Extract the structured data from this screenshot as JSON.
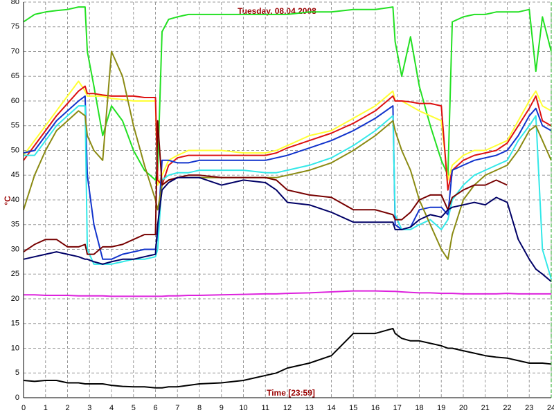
{
  "chart_data": {
    "type": "line",
    "title": "Tuesday, 08.04.2008",
    "x_label": "Time [23:59]",
    "y_label": "°C",
    "x": [
      0,
      0.5,
      1,
      1.5,
      2,
      2.5,
      2.8,
      2.9,
      3.2,
      3.6,
      4,
      4.5,
      5,
      5.5,
      6,
      6.1,
      6.3,
      6.6,
      7,
      7.5,
      8,
      9,
      10,
      11,
      11.5,
      12,
      13,
      14,
      15,
      16,
      16.8,
      16.9,
      17.2,
      17.6,
      18,
      18.5,
      19,
      19.3,
      19.5,
      20,
      20.5,
      21,
      21.5,
      22,
      22.5,
      23,
      23.3,
      23.6,
      24
    ],
    "xlim": [
      0,
      24
    ],
    "xticks": [
      0,
      1,
      2,
      3,
      4,
      5,
      6,
      7,
      8,
      9,
      10,
      11,
      12,
      13,
      14,
      15,
      16,
      17,
      18,
      19,
      20,
      21,
      22,
      23,
      24
    ],
    "ylim": [
      0,
      80
    ],
    "yticks": [
      0,
      5,
      10,
      15,
      20,
      25,
      30,
      35,
      40,
      45,
      50,
      55,
      60,
      65,
      70,
      75,
      80
    ],
    "grid": true,
    "series": [
      {
        "color": "#22e022",
        "values": [
          76,
          77.5,
          78,
          78.3,
          78.5,
          79,
          79,
          70,
          63,
          53,
          59,
          56,
          50,
          46,
          44,
          46,
          74,
          76.5,
          77,
          77.5,
          77.5,
          77.5,
          77.5,
          77.5,
          77.5,
          77.5,
          78,
          78,
          78.5,
          78.5,
          79,
          72,
          65,
          73,
          63,
          55,
          48,
          45,
          76,
          77,
          77.5,
          77.5,
          78,
          78,
          78,
          78.5,
          66,
          77,
          70
        ]
      },
      {
        "color": "#ffff33",
        "values": [
          49,
          52,
          55,
          58,
          61,
          64,
          62,
          61,
          61,
          61,
          60.5,
          60.3,
          60,
          60,
          60,
          43,
          45,
          48,
          49,
          50,
          50,
          50,
          49.5,
          49.5,
          50,
          51,
          53,
          54,
          56.5,
          59,
          62,
          60,
          60,
          59,
          58,
          57,
          56,
          44,
          47,
          49,
          50,
          50,
          51,
          52,
          56,
          60,
          62,
          59,
          58
        ]
      },
      {
        "color": "#dd1111",
        "values": [
          48,
          51,
          54,
          57,
          59.5,
          62,
          63,
          61.5,
          61.5,
          61.2,
          61,
          61,
          61,
          60.7,
          60.7,
          44,
          43,
          47,
          48.5,
          49,
          49,
          49,
          49,
          49,
          49.5,
          50.5,
          52,
          53.5,
          55.5,
          58,
          61,
          60,
          60,
          59.8,
          59.5,
          59.5,
          59,
          42,
          46,
          48,
          49,
          49.5,
          50,
          51.5,
          55,
          58.5,
          61,
          56,
          55
        ]
      },
      {
        "color": "#1133cc",
        "values": [
          49.5,
          50,
          53,
          56,
          58,
          60,
          61,
          45,
          35,
          28,
          28,
          29,
          29.5,
          30,
          30,
          33,
          48,
          48,
          47.5,
          47.5,
          48,
          48,
          48,
          48,
          48.5,
          49,
          50.5,
          52,
          54,
          56.5,
          59,
          35,
          34,
          34.5,
          38,
          38.5,
          38.5,
          37,
          46,
          47,
          48,
          48.5,
          49,
          50,
          53,
          57,
          58.5,
          55,
          54
        ]
      },
      {
        "color": "#33e8e8",
        "values": [
          49,
          49,
          52,
          55,
          57,
          59,
          59,
          30,
          27,
          27,
          27,
          27.5,
          28,
          28,
          28.5,
          30,
          44,
          45,
          45.5,
          45.5,
          46,
          46,
          46,
          45.5,
          45.5,
          46,
          47,
          48.5,
          51,
          54,
          57,
          37,
          34,
          34,
          35,
          36,
          34,
          36,
          40,
          43,
          45,
          46,
          47,
          48,
          52,
          55,
          57,
          30,
          24
        ]
      },
      {
        "color": "#8a8a12",
        "values": [
          38,
          45,
          50,
          54,
          56,
          58,
          57,
          53,
          50,
          48,
          70,
          65,
          55,
          47,
          40,
          38,
          43,
          44,
          44.5,
          44.5,
          44.5,
          44.5,
          44.5,
          44.5,
          44.5,
          45,
          46,
          47.5,
          50,
          53,
          56,
          54,
          50,
          46,
          40,
          35,
          30,
          28,
          33,
          40,
          43,
          45,
          46,
          47,
          50,
          54,
          55,
          52,
          48
        ]
      },
      {
        "color": "#770000",
        "values": [
          29.5,
          31,
          32,
          32,
          30.5,
          30.5,
          31,
          29,
          29,
          30.5,
          30.5,
          31,
          32,
          33,
          33,
          56,
          43,
          44,
          44.5,
          45,
          45,
          44.5,
          44.5,
          44.5,
          44,
          42,
          41,
          40.5,
          38,
          38,
          37,
          36,
          36,
          37.5,
          40,
          41,
          41,
          38,
          40.5,
          42,
          43,
          43,
          44,
          43,
          null,
          null,
          null,
          null,
          null
        ]
      },
      {
        "color": "#000066",
        "values": [
          28,
          28.5,
          29,
          29.5,
          29,
          28.5,
          28,
          28,
          27.5,
          27,
          27.5,
          28,
          28,
          28.5,
          29,
          35,
          42,
          43.5,
          44.5,
          44.5,
          44.5,
          43,
          44,
          43.5,
          42,
          39.5,
          39,
          37.5,
          35.5,
          35.5,
          35.5,
          34,
          34,
          34.5,
          36,
          37,
          36.5,
          38,
          38.5,
          39,
          39.5,
          39,
          40.5,
          39.5,
          32,
          28,
          26,
          25,
          23.5
        ]
      },
      {
        "color": "#dd22dd",
        "values": [
          20.8,
          20.8,
          20.7,
          20.7,
          20.7,
          20.6,
          20.6,
          20.6,
          20.6,
          20.6,
          20.5,
          20.5,
          20.5,
          20.5,
          20.5,
          20.5,
          20.5,
          20.6,
          20.6,
          20.7,
          20.7,
          20.8,
          20.9,
          21,
          21,
          21.1,
          21.2,
          21.4,
          21.6,
          21.6,
          21.5,
          21.5,
          21.4,
          21.3,
          21.2,
          21.2,
          21.1,
          21.1,
          21.1,
          21,
          21,
          21,
          21,
          21.1,
          21,
          21,
          21,
          21,
          21
        ]
      },
      {
        "color": "#000000",
        "values": [
          3.5,
          3.3,
          3.5,
          3.5,
          3,
          3,
          2.8,
          2.8,
          2.8,
          2.8,
          2.5,
          2.3,
          2.2,
          2.2,
          2,
          2,
          2,
          2.2,
          2.2,
          2.5,
          2.8,
          3,
          3.5,
          4.5,
          5,
          6,
          7,
          8.5,
          13,
          13,
          14,
          13,
          12,
          11.5,
          11.5,
          11,
          10.5,
          10,
          10,
          9.5,
          9,
          8.5,
          8.2,
          8,
          7.5,
          7,
          7,
          7,
          6.8
        ]
      }
    ]
  }
}
